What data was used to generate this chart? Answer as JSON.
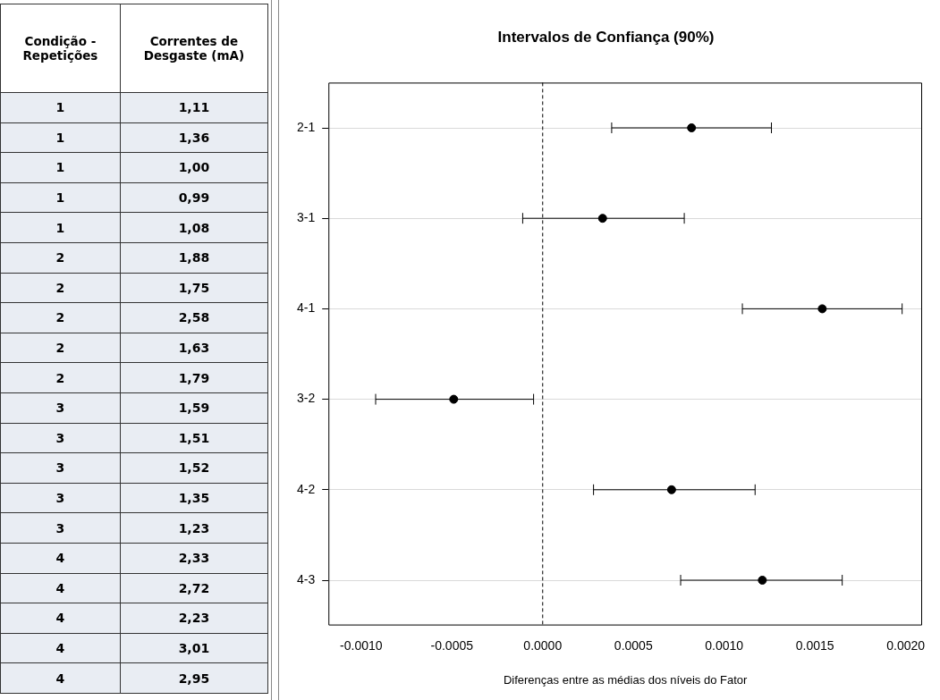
{
  "chart_data": [
    {
      "type": "other",
      "annotations": [
        "Condição - Repetições",
        "Correntes de Desgaste (mA)",
        "1",
        "1,11",
        "1",
        "1,36",
        "1",
        "1,00",
        "1",
        "0,99",
        "1",
        "1,08",
        "2",
        "1,88",
        "2",
        "1,75",
        "2",
        "2,58",
        "2",
        "1,63",
        "2",
        "1,79",
        "3",
        "1,59",
        "3",
        "1,51",
        "3",
        "1,52",
        "3",
        "1,35",
        "3",
        "1,23",
        "4",
        "2,33",
        "4",
        "2,72",
        "4",
        "2,23",
        "4",
        "3,01",
        "4",
        "2,95"
      ]
    },
    {
      "type": "scatter",
      "orientation": "horizontal",
      "title": "Intervalos de Confiança (90%)",
      "xlabel": "Diferenças entre as médias dos níveis do Fator",
      "categories": [
        "2-1",
        "3-1",
        "4-1",
        "3-2",
        "4-2",
        "4-3"
      ],
      "values": [
        0.00082,
        0.00033,
        0.00154,
        -0.00049,
        0.00071,
        0.00121
      ],
      "errors": [
        [
          0.00038,
          0.00126
        ],
        [
          -0.00011,
          0.00078
        ],
        [
          0.0011,
          0.00198
        ],
        [
          -0.00092,
          -5e-05
        ],
        [
          0.00028,
          0.00117
        ],
        [
          0.00076,
          0.00165
        ]
      ],
      "color": "#000000",
      "marker": "circle",
      "xlim": [
        -0.00118,
        0.00209
      ],
      "xticks": [
        {
          "value": -0.001,
          "label": "-0.0010"
        },
        {
          "value": -0.0005,
          "label": "-0.0005"
        },
        {
          "value": 0,
          "label": "0.0000"
        },
        {
          "value": 0.0005,
          "label": "0.0005"
        },
        {
          "value": 0.001,
          "label": "0.0010"
        },
        {
          "value": 0.0015,
          "label": "0.0015"
        },
        {
          "value": 0.002,
          "label": "0.0020"
        }
      ],
      "ref_lines": [
        {
          "axis": "x",
          "value": 0,
          "line_style": "dashed",
          "color": "#000000"
        }
      ],
      "grid": "y",
      "legend": false
    }
  ]
}
